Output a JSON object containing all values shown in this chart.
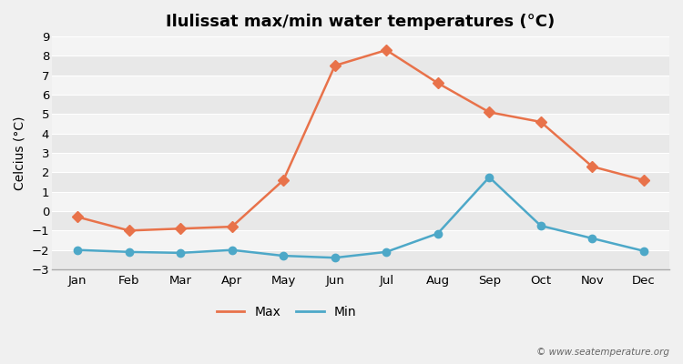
{
  "title": "Ilulissat max/min water temperatures (°C)",
  "ylabel_label": "Celcius (°C)",
  "months": [
    "Jan",
    "Feb",
    "Mar",
    "Apr",
    "May",
    "Jun",
    "Jul",
    "Aug",
    "Sep",
    "Oct",
    "Nov",
    "Dec"
  ],
  "max_values": [
    -0.3,
    -1.0,
    -0.9,
    -0.8,
    1.6,
    7.5,
    8.3,
    6.6,
    5.1,
    4.6,
    2.3,
    1.6
  ],
  "min_values": [
    -2.0,
    -2.1,
    -2.15,
    -2.0,
    -2.3,
    -2.4,
    -2.1,
    -1.15,
    1.75,
    -0.75,
    -1.4,
    -2.05
  ],
  "max_color": "#e8724a",
  "min_color": "#4da8c8",
  "fig_bg_color": "#f0f0f0",
  "plot_bg_color": "#f0f0f0",
  "band_colors": [
    "#e8e8e8",
    "#f4f4f4"
  ],
  "grid_color": "#ffffff",
  "ylim": [
    -3,
    9
  ],
  "yticks": [
    -3,
    -2,
    -1,
    0,
    1,
    2,
    3,
    4,
    5,
    6,
    7,
    8,
    9
  ],
  "legend_labels": [
    "Max",
    "Min"
  ],
  "watermark": "© www.seatemperature.org",
  "title_fontsize": 13,
  "axis_label_fontsize": 10,
  "tick_fontsize": 9.5,
  "legend_fontsize": 10
}
